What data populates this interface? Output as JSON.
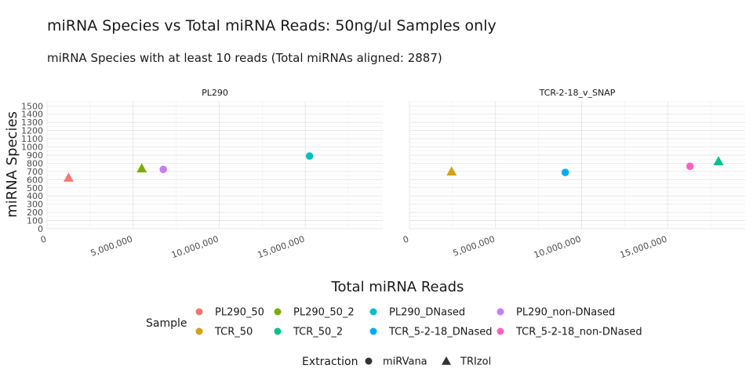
{
  "chart_data": {
    "type": "scatter",
    "title": "miRNA Species vs Total miRNA Reads: 50ng/ul Samples only",
    "subtitle": "miRNA Species with at least 10 reads (Total miRNAs aligned: 2887)",
    "xlabel": "Total miRNA Reads",
    "ylabel": "miRNA Species",
    "xlim": [
      0,
      19500000
    ],
    "ylim": [
      0,
      1560
    ],
    "x_ticks": [
      0,
      5000000,
      10000000,
      15000000
    ],
    "x_tick_labels": [
      "0",
      "5,000,000",
      "10,000,000",
      "15,000,000"
    ],
    "y_ticks": [
      0,
      100,
      200,
      300,
      400,
      500,
      600,
      700,
      800,
      900,
      1000,
      1100,
      1200,
      1300,
      1400,
      1500
    ],
    "y_tick_labels": [
      "0",
      "100",
      "200",
      "300",
      "400",
      "500",
      "600",
      "700",
      "800",
      "900",
      "1000",
      "1100",
      "1200",
      "1300",
      "1400",
      "1500"
    ],
    "grid": true,
    "panels": [
      "PL290",
      "TCR-2-18_v_SNAP"
    ],
    "legend_sample_title": "Sample",
    "legend_shape_title": "Extraction",
    "legend_placement": "bottom",
    "samples": [
      {
        "name": "PL290_50",
        "color": "#F8766D"
      },
      {
        "name": "PL290_50_2",
        "color": "#7CAE00"
      },
      {
        "name": "PL290_DNased",
        "color": "#00BFC4"
      },
      {
        "name": "PL290_non-DNased",
        "color": "#C77CFF"
      },
      {
        "name": "TCR_50",
        "color": "#D4A017"
      },
      {
        "name": "TCR_50_2",
        "color": "#00C08B"
      },
      {
        "name": "TCR_5-2-18_DNased",
        "color": "#00A9FF"
      },
      {
        "name": "TCR_5-2-18_non-DNased",
        "color": "#FF61C3"
      }
    ],
    "extractions": [
      {
        "name": "miRVana",
        "shape": "circle"
      },
      {
        "name": "TRIzol",
        "shape": "triangle"
      }
    ],
    "points": [
      {
        "panel": "PL290",
        "sample": "PL290_50",
        "extraction": "TRIzol",
        "x": 1250000,
        "y": 625
      },
      {
        "panel": "PL290",
        "sample": "PL290_50_2",
        "extraction": "TRIzol",
        "x": 5500000,
        "y": 738
      },
      {
        "panel": "PL290",
        "sample": "PL290_non-DNased",
        "extraction": "miRVana",
        "x": 6750000,
        "y": 725
      },
      {
        "panel": "PL290",
        "sample": "PL290_DNased",
        "extraction": "miRVana",
        "x": 15250000,
        "y": 888
      },
      {
        "panel": "TCR-2-18_v_SNAP",
        "sample": "TCR_50",
        "extraction": "TRIzol",
        "x": 2450000,
        "y": 700
      },
      {
        "panel": "TCR-2-18_v_SNAP",
        "sample": "TCR_5-2-18_DNased",
        "extraction": "miRVana",
        "x": 9050000,
        "y": 688
      },
      {
        "panel": "TCR-2-18_v_SNAP",
        "sample": "TCR_5-2-18_non-DNased",
        "extraction": "miRVana",
        "x": 16300000,
        "y": 763
      },
      {
        "panel": "TCR-2-18_v_SNAP",
        "sample": "TCR_50_2",
        "extraction": "TRIzol",
        "x": 17950000,
        "y": 825
      }
    ]
  }
}
